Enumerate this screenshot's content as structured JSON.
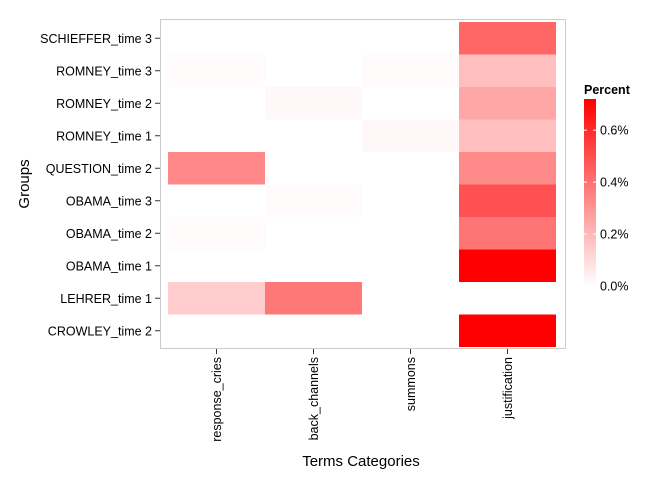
{
  "chart_data": {
    "type": "heatmap",
    "xlabel": "Terms Categories",
    "ylabel": "Groups",
    "x_categories": [
      "response_cries",
      "back_channels",
      "summons",
      "justification"
    ],
    "y_categories": [
      "SCHIEFFER_time 3",
      "ROMNEY_time 3",
      "ROMNEY_time 2",
      "ROMNEY_time 1",
      "QUESTION_time 2",
      "OBAMA_time 3",
      "OBAMA_time 2",
      "OBAMA_time 1",
      "LEHRER_time 1",
      "CROWLEY_time 2"
    ],
    "values": [
      [
        0.0,
        0.0,
        0.0,
        0.43
      ],
      [
        0.01,
        0.0,
        0.01,
        0.18
      ],
      [
        0.0,
        0.02,
        0.0,
        0.25
      ],
      [
        0.0,
        0.0,
        0.02,
        0.18
      ],
      [
        0.34,
        0.0,
        0.0,
        0.33
      ],
      [
        0.0,
        0.01,
        0.0,
        0.49
      ],
      [
        0.01,
        0.0,
        0.0,
        0.39
      ],
      [
        0.0,
        0.0,
        0.0,
        0.72
      ],
      [
        0.14,
        0.38,
        0.0,
        0.0
      ],
      [
        0.0,
        0.0,
        0.0,
        0.72
      ]
    ],
    "color_range": [
      0.0,
      0.72
    ],
    "color_low": "#ffffff",
    "color_high": "#ff0000",
    "legend": {
      "title": "Percent",
      "ticks": [
        0.0,
        0.2,
        0.4,
        0.6
      ],
      "tick_labels": [
        "0.0%",
        "0.2%",
        "0.4%",
        "0.6%"
      ],
      "position": "right"
    },
    "grid": false
  }
}
